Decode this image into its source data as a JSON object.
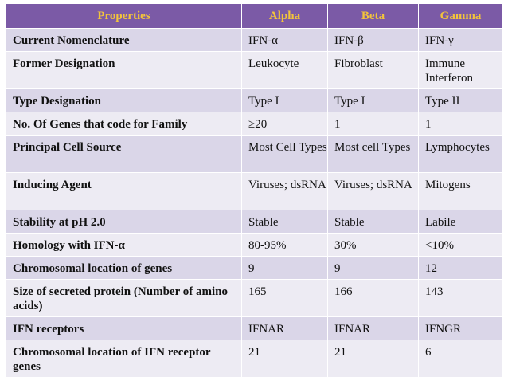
{
  "table": {
    "headers": [
      "Properties",
      "Alpha",
      "Beta",
      "Gamma"
    ],
    "rows": [
      [
        "Current Nomenclature",
        "IFN-α",
        "IFN-β",
        "IFN-γ"
      ],
      [
        "Former Designation",
        "Leukocyte",
        "Fibroblast",
        "Immune Interferon"
      ],
      [
        "Type Designation",
        "Type I",
        "Type I",
        "Type II"
      ],
      [
        "No. Of Genes that code for Family",
        "≥20",
        "1",
        "1"
      ],
      [
        "Principal Cell Source",
        "Most Cell Types",
        "Most cell Types",
        "Lymphocytes"
      ],
      [
        "Inducing Agent",
        "Viruses; dsRNA",
        "Viruses; dsRNA",
        "Mitogens"
      ],
      [
        "Stability at pH 2.0",
        "Stable",
        "Stable",
        "Labile"
      ],
      [
        "Homology with IFN-α",
        "80-95%",
        "30%",
        "<10%"
      ],
      [
        "Chromosomal location of genes",
        "9",
        "9",
        "12"
      ],
      [
        "Size of secreted protein (Number of amino acids)",
        "165",
        "166",
        "143"
      ],
      [
        "IFN receptors",
        "IFNAR",
        "IFNAR",
        "IFNGR"
      ],
      [
        "Chromosomal location of IFN receptor genes",
        "21",
        "21",
        "6"
      ]
    ]
  },
  "colors": {
    "header_bg": "#7b5aa6",
    "header_text": "#f3c43b",
    "row_odd": "#dad6e8",
    "row_even": "#edebf3"
  }
}
